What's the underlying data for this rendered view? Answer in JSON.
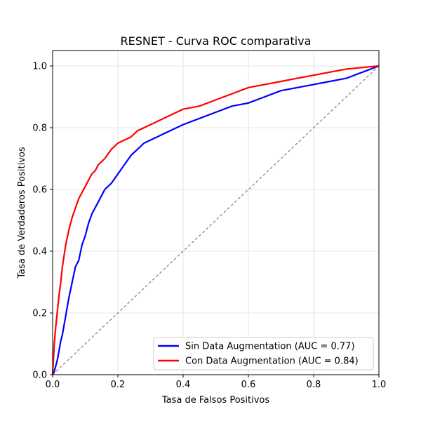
{
  "chart_data": {
    "type": "line",
    "title": "RESNET - Curva ROC comparativa",
    "xlabel": "Tasa de Falsos Positivos",
    "ylabel": "Tasa de Verdaderos Positivos",
    "xlim": [
      0.0,
      1.0
    ],
    "ylim": [
      0.0,
      1.05
    ],
    "xticks": [
      "0.0",
      "0.2",
      "0.4",
      "0.6",
      "0.8",
      "1.0"
    ],
    "yticks": [
      "0.0",
      "0.2",
      "0.4",
      "0.6",
      "0.8",
      "1.0"
    ],
    "grid": true,
    "legend_position": "lower-right",
    "series": [
      {
        "name": "Sin Data Augmentation (AUC = 0.77)",
        "color": "#0000ff",
        "x": [
          0.0,
          0.005,
          0.01,
          0.015,
          0.02,
          0.025,
          0.03,
          0.04,
          0.05,
          0.06,
          0.07,
          0.08,
          0.09,
          0.1,
          0.11,
          0.12,
          0.13,
          0.14,
          0.15,
          0.16,
          0.18,
          0.2,
          0.22,
          0.24,
          0.26,
          0.28,
          0.3,
          0.32,
          0.34,
          0.36,
          0.38,
          0.4,
          0.45,
          0.5,
          0.55,
          0.6,
          0.65,
          0.7,
          0.75,
          0.8,
          0.85,
          0.9,
          0.95,
          1.0
        ],
        "y": [
          0.0,
          0.01,
          0.03,
          0.05,
          0.08,
          0.11,
          0.13,
          0.19,
          0.25,
          0.3,
          0.35,
          0.37,
          0.42,
          0.45,
          0.49,
          0.52,
          0.54,
          0.56,
          0.58,
          0.6,
          0.62,
          0.65,
          0.68,
          0.71,
          0.73,
          0.75,
          0.76,
          0.77,
          0.78,
          0.79,
          0.8,
          0.81,
          0.83,
          0.85,
          0.87,
          0.88,
          0.9,
          0.92,
          0.93,
          0.94,
          0.95,
          0.96,
          0.98,
          1.0
        ]
      },
      {
        "name": "Con Data Augmentation (AUC = 0.84)",
        "color": "#ff0000",
        "x": [
          0.0,
          0.005,
          0.01,
          0.015,
          0.02,
          0.025,
          0.03,
          0.04,
          0.05,
          0.06,
          0.07,
          0.08,
          0.09,
          0.1,
          0.11,
          0.12,
          0.13,
          0.14,
          0.15,
          0.16,
          0.18,
          0.2,
          0.22,
          0.24,
          0.26,
          0.28,
          0.3,
          0.32,
          0.34,
          0.36,
          0.38,
          0.4,
          0.45,
          0.5,
          0.55,
          0.6,
          0.65,
          0.7,
          0.75,
          0.8,
          0.85,
          0.9,
          0.95,
          1.0
        ],
        "y": [
          0.0,
          0.1,
          0.16,
          0.21,
          0.26,
          0.3,
          0.35,
          0.42,
          0.47,
          0.51,
          0.54,
          0.57,
          0.59,
          0.61,
          0.63,
          0.65,
          0.66,
          0.68,
          0.69,
          0.7,
          0.73,
          0.75,
          0.76,
          0.77,
          0.79,
          0.8,
          0.81,
          0.82,
          0.83,
          0.84,
          0.85,
          0.86,
          0.87,
          0.89,
          0.91,
          0.93,
          0.94,
          0.95,
          0.96,
          0.97,
          0.98,
          0.99,
          0.995,
          1.0
        ]
      },
      {
        "name": "",
        "color": "#808080",
        "dashed": true,
        "x": [
          0.0,
          1.0
        ],
        "y": [
          0.0,
          1.0
        ]
      }
    ]
  }
}
